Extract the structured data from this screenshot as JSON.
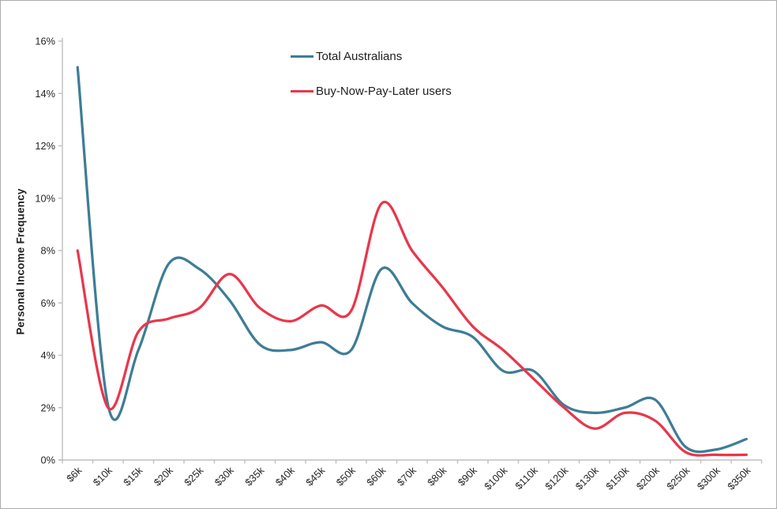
{
  "chart_data": {
    "type": "line",
    "title": "",
    "xlabel": "",
    "ylabel": "Personal Income Frequency",
    "ylim": [
      0,
      16
    ],
    "ytick_step": 2,
    "ytick_labels": [
      "0%",
      "2%",
      "4%",
      "6%",
      "8%",
      "10%",
      "12%",
      "14%",
      "16%"
    ],
    "grid": false,
    "smooth": true,
    "xtick_rotation": 45,
    "legend_position": "top-center",
    "categories": [
      "$6k",
      "$10k",
      "$15k",
      "$20k",
      "$25k",
      "$30k",
      "$35k",
      "$40k",
      "$45k",
      "$50k",
      "$60k",
      "$70k",
      "$80k",
      "$90k",
      "$100k",
      "$110k",
      "$120k",
      "$130k",
      "$150k",
      "$200k",
      "$250k",
      "$300k",
      "$350k"
    ],
    "series": [
      {
        "name": "Total Australians",
        "color": "#3e7d96",
        "values": [
          15.0,
          2.1,
          4.2,
          7.5,
          7.3,
          6.1,
          4.4,
          4.2,
          4.5,
          4.2,
          7.3,
          6.0,
          5.1,
          4.7,
          3.4,
          3.4,
          2.1,
          1.8,
          2.0,
          2.3,
          0.5,
          0.4,
          0.8
        ]
      },
      {
        "name": "Buy-Now-Pay-Later users",
        "color": "#e8374b",
        "values": [
          8.0,
          2.0,
          4.9,
          5.4,
          5.8,
          7.1,
          5.8,
          5.3,
          5.9,
          5.7,
          9.8,
          8.0,
          6.6,
          5.1,
          4.2,
          3.1,
          2.0,
          1.2,
          1.8,
          1.5,
          0.3,
          0.2,
          0.2
        ]
      }
    ]
  },
  "colors": {
    "axis_line": "#bfbfbf",
    "tick_mark": "#bfbfbf",
    "tick_text": "#262626",
    "background": "#ffffff"
  }
}
